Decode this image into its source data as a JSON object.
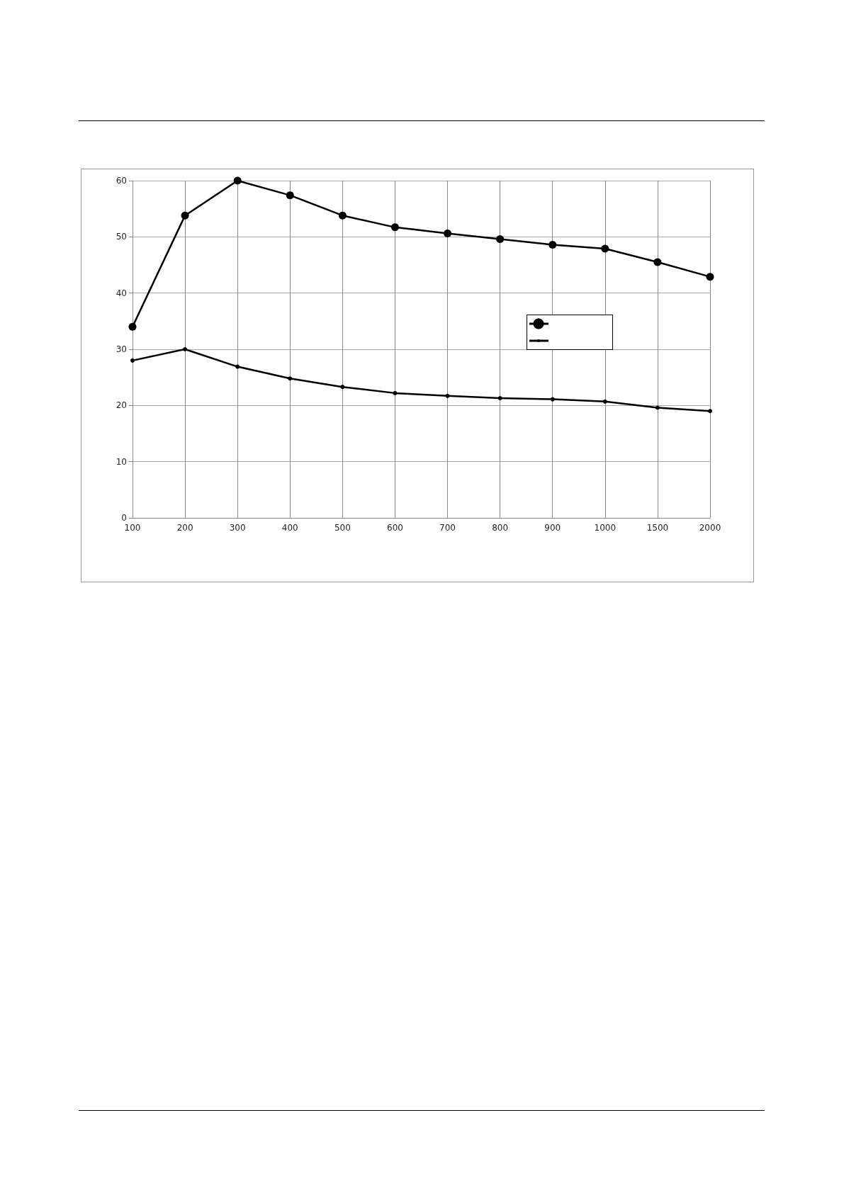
{
  "chart_data": {
    "type": "line",
    "categories": [
      "100",
      "200",
      "300",
      "400",
      "500",
      "600",
      "700",
      "800",
      "900",
      "1000",
      "1500",
      "2000"
    ],
    "series": [
      {
        "color": "#000000",
        "values": [
          34,
          53.8,
          60,
          57.4,
          53.8,
          51.7,
          50.6,
          49.6,
          48.6,
          47.9,
          45.5,
          42.9
        ]
      },
      {
        "color": "#000000",
        "values": [
          28,
          30,
          26.9,
          24.8,
          23.3,
          22.2,
          21.7,
          21.3,
          21.1,
          20.7,
          19.6,
          19.0
        ]
      }
    ],
    "ylim": [
      0,
      60
    ],
    "yticks": [
      0,
      10,
      20,
      30,
      40,
      50,
      60
    ],
    "grid": true,
    "marker": "circle",
    "line_style": "solid"
  }
}
